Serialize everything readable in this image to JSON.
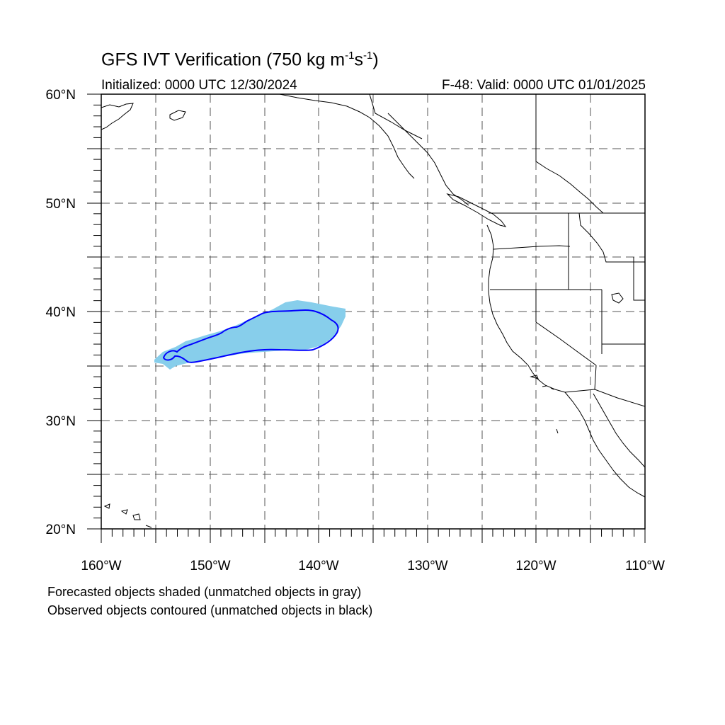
{
  "header": {
    "title_main": "GFS IVT Verification (750 kg m",
    "title_exp1": "-1",
    "title_mid": "s",
    "title_exp2": "-1",
    "title_end": ")",
    "initialized": "Initialized: 0000 UTC 12/30/2024",
    "valid": "F-48: Valid: 0000 UTC 01/01/2025"
  },
  "axes": {
    "lon_labels": [
      "160°W",
      "150°W",
      "140°W",
      "130°W",
      "120°W",
      "110°W"
    ],
    "lat_labels": [
      "20°N",
      "30°N",
      "40°N",
      "50°N",
      "60°N"
    ],
    "lon_range": [
      -160,
      -110
    ],
    "lat_range": [
      20,
      60
    ],
    "grid_spacing_deg": 5,
    "grid": "dashed"
  },
  "legend": {
    "forecast_note": "Forecasted objects shaded (unmatched objects in gray)",
    "observed_note": "Observed objects contoured (unmatched objects in black)"
  },
  "colors": {
    "forecast_fill": "#87ceeb",
    "observed_contour": "#0000ff",
    "coastline": "#000000",
    "grid": "#555555"
  }
}
